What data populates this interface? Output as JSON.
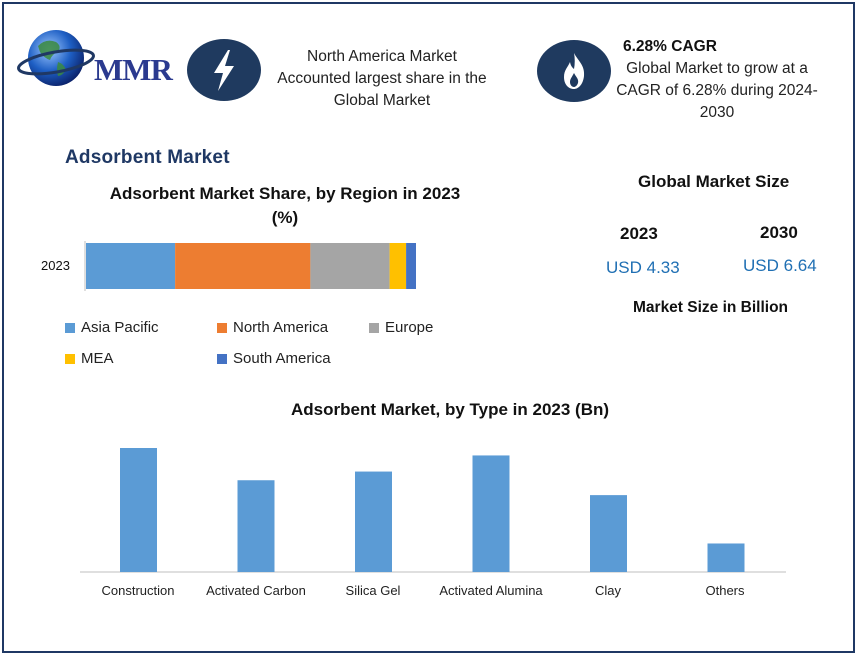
{
  "brand": {
    "name": "MMR"
  },
  "highlights": [
    {
      "icon": "lightning-icon",
      "text_lines": [
        "North America Market",
        "Accounted largest share in the",
        "Global Market"
      ]
    },
    {
      "icon": "flame-icon",
      "title": "6.28% CAGR",
      "text_lines": [
        "Global Market to grow at a",
        "CAGR of 6.28% during 2024-",
        "2030"
      ]
    }
  ],
  "section_title": "Adsorbent Market",
  "market_size": {
    "title": "Global Market Size",
    "years": [
      "2023",
      "2030"
    ],
    "values": [
      "USD 4.33",
      "USD 6.64"
    ],
    "unit_label": "Market Size in Billion"
  },
  "colors": {
    "Asia Pacific": "#5b9bd5",
    "North America": "#ed7d31",
    "Europe": "#a5a5a5",
    "MEA": "#ffc000",
    "South America": "#4472c4",
    "bar": "#5b9bd5",
    "navy": "#1f3864"
  },
  "chart_data": [
    {
      "type": "bar",
      "orientation": "horizontal",
      "stacked": true,
      "title": "Adsorbent Market Share, by Region in 2023 (%)",
      "categories": [
        "2023"
      ],
      "series": [
        {
          "name": "Asia Pacific",
          "values": [
            27
          ]
        },
        {
          "name": "North America",
          "values": [
            41
          ]
        },
        {
          "name": "Europe",
          "values": [
            24
          ]
        },
        {
          "name": "MEA",
          "values": [
            5
          ]
        },
        {
          "name": "South America",
          "values": [
            3
          ]
        }
      ],
      "legend": "bottom",
      "grid": false
    },
    {
      "type": "bar",
      "title": "Adsorbent  Market, by Type in 2023 (Bn)",
      "categories": [
        "Construction",
        "Activated Carbon",
        "Silica Gel",
        "Activated Alumina",
        "Clay",
        "Others"
      ],
      "values": [
        1.0,
        0.74,
        0.81,
        0.94,
        0.62,
        0.23
      ],
      "ylim": [
        0,
        1.0
      ],
      "grid": false
    }
  ]
}
